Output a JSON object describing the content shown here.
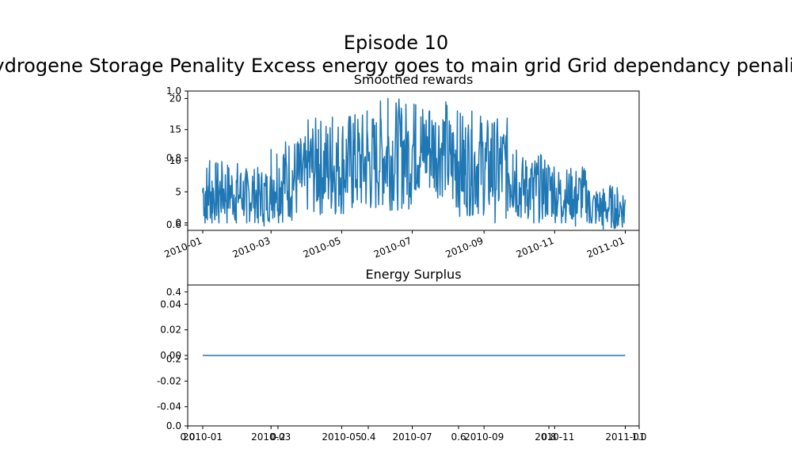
{
  "figure": {
    "title": "Episode 10",
    "subtitle": "Hydrogene Storage Penality  Excess energy goes to main grid  Grid dependancy penality"
  },
  "colors": {
    "line": "#1f77b4",
    "axis": "#000000",
    "background": "#ffffff"
  },
  "chart_data": [
    {
      "type": "line",
      "title": "Smoothed rewards",
      "xlabel": "",
      "ylabel": "",
      "x_range": [
        "2010-01-01",
        "2011-01-01"
      ],
      "xlim": [
        "2009-12-19",
        "2011-01-13"
      ],
      "ylim": [
        -1.2,
        21.2
      ],
      "grid": false,
      "x_ticks": [
        "2010-01",
        "2010-03",
        "2010-05",
        "2010-07",
        "2010-09",
        "2010-11",
        "2011-01"
      ],
      "y_ticks": [
        0,
        5,
        10,
        15,
        20
      ],
      "monthly_envelope": [
        {
          "month": "2010-01",
          "low": 0,
          "high": 10
        },
        {
          "month": "2010-02",
          "low": 0,
          "high": 9
        },
        {
          "month": "2010-03",
          "low": 0,
          "high": 14
        },
        {
          "month": "2010-04",
          "low": 1,
          "high": 17
        },
        {
          "month": "2010-05",
          "low": 1,
          "high": 18
        },
        {
          "month": "2010-06",
          "low": 2,
          "high": 20
        },
        {
          "month": "2010-07",
          "low": 4,
          "high": 20
        },
        {
          "month": "2010-08",
          "low": 1,
          "high": 18
        },
        {
          "month": "2010-09",
          "low": 0,
          "high": 17
        },
        {
          "month": "2010-10",
          "low": 0,
          "high": 11
        },
        {
          "month": "2010-11",
          "low": 0,
          "high": 9
        },
        {
          "month": "2010-12",
          "low": -1,
          "high": 6
        }
      ],
      "series": [
        {
          "x": [
            "2010-01-01",
            "2010-01-03",
            "2010-01-05",
            "2010-01-07",
            "2010-01-09",
            "2010-01-12",
            "2010-01-15",
            "2010-01-18",
            "2010-01-22",
            "2010-01-26",
            "2010-01-30",
            "2010-02-03",
            "2010-02-08",
            "2010-02-13",
            "2010-02-18",
            "2010-02-23",
            "2010-03-01",
            "2010-03-06",
            "2010-03-12",
            "2010-03-18",
            "2010-03-24",
            "2010-03-30",
            "2010-04-05",
            "2010-04-11",
            "2010-04-17",
            "2010-04-23",
            "2010-04-29",
            "2010-05-05",
            "2010-05-11",
            "2010-05-17",
            "2010-05-23",
            "2010-05-29",
            "2010-06-04",
            "2010-06-10",
            "2010-06-16",
            "2010-06-22",
            "2010-06-28",
            "2010-07-04",
            "2010-07-10",
            "2010-07-16",
            "2010-07-22",
            "2010-07-28",
            "2010-08-03",
            "2010-08-09",
            "2010-08-15",
            "2010-08-21",
            "2010-08-27",
            "2010-09-02",
            "2010-09-08",
            "2010-09-14",
            "2010-09-20",
            "2010-09-26",
            "2010-10-02",
            "2010-10-08",
            "2010-10-14",
            "2010-10-20",
            "2010-10-26",
            "2010-11-01",
            "2010-11-07",
            "2010-11-13",
            "2010-11-19",
            "2010-11-25",
            "2010-12-01",
            "2010-12-07",
            "2010-12-13",
            "2010-12-19",
            "2010-12-25",
            "2010-12-31"
          ],
          "y": [
            5.5,
            0,
            0.5,
            10,
            0,
            4,
            0,
            7.5,
            0,
            6,
            0,
            8,
            0,
            7.5,
            0,
            -0.5,
            3,
            7,
            11,
            4,
            13,
            6,
            10,
            15,
            5,
            17,
            9,
            12,
            16,
            7,
            18,
            10,
            14,
            20,
            8,
            17,
            12,
            19,
            10,
            18,
            7,
            16,
            11,
            18,
            3,
            15,
            9,
            12,
            16,
            4,
            14,
            11,
            3,
            9,
            0,
            11,
            2,
            6,
            0,
            3,
            -0.5,
            9,
            0,
            1,
            -1,
            6,
            -0.5,
            0
          ]
        }
      ]
    },
    {
      "type": "line",
      "title": "Energy Surplus",
      "xlabel": "",
      "ylabel": "",
      "x_range": [
        "2010-01-01",
        "2011-01-01"
      ],
      "xlim": [
        "2009-12-19",
        "2011-01-13"
      ],
      "ylim": [
        -0.055,
        0.055
      ],
      "grid": false,
      "x_ticks": [
        "2010-01",
        "2010-03",
        "2010-05",
        "2010-07",
        "2010-09",
        "2010-11",
        "2011-01"
      ],
      "y_ticks": [
        -0.04,
        -0.02,
        0.0,
        0.02,
        0.04
      ],
      "series": [
        {
          "x": [
            "2010-01-01",
            "2011-01-01"
          ],
          "y": [
            0,
            0
          ]
        }
      ]
    }
  ],
  "background_axes": {
    "x_ticks": [
      "0.0",
      "0.2",
      "0.4",
      "0.6",
      "0.8",
      "1.0"
    ],
    "y_ticks": [
      "0.0",
      "0.2",
      "0.4",
      "0.6",
      "0.8",
      "1.0"
    ]
  }
}
